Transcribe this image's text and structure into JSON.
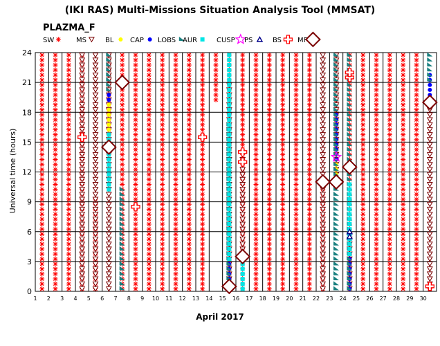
{
  "chart_data": {
    "type": "scatter",
    "title": "(IKI RAS) Multi-Missions Situation Analysis Tool (MMSAT)",
    "subtitle": "PLAZMA_F",
    "xlabel": "April 2017",
    "ylabel": "Universal time (hours)",
    "xlim": [
      1,
      31
    ],
    "ylim": [
      0,
      24
    ],
    "x_ticks": [
      1,
      2,
      3,
      4,
      5,
      6,
      7,
      8,
      9,
      10,
      11,
      12,
      13,
      14,
      15,
      16,
      17,
      18,
      19,
      20,
      21,
      22,
      23,
      24,
      25,
      26,
      27,
      28,
      29,
      30
    ],
    "y_ticks": [
      0,
      3,
      6,
      9,
      12,
      15,
      18,
      21,
      24
    ],
    "grid": true,
    "legend_placement": "top",
    "legend": [
      {
        "label": "SW",
        "marker": "asterisk",
        "color": "#ff0000"
      },
      {
        "label": "MS",
        "marker": "triangle-down",
        "color": "#7a0000"
      },
      {
        "label": "BL",
        "marker": "circle",
        "color": "#ffff00"
      },
      {
        "label": "CAP",
        "marker": "circle",
        "color": "#0000ff"
      },
      {
        "label": "LOBS",
        "marker": "flag",
        "color": "#1a8080"
      },
      {
        "label": "AUR",
        "marker": "square",
        "color": "#00e5e5"
      },
      {
        "label": "CUSP",
        "marker": "star",
        "color": "#ff00ff"
      },
      {
        "label": "PS",
        "marker": "triangle-up",
        "color": "#00008b"
      },
      {
        "label": "BS",
        "marker": "cross",
        "color": "#ff0000"
      },
      {
        "label": "MP",
        "marker": "diamond",
        "color": "#7a0000"
      }
    ],
    "series": [
      {
        "name": "SW",
        "columns": [
          {
            "x": 1.5,
            "ranges": [
              [
                0,
                24
              ]
            ]
          },
          {
            "x": 2.5,
            "ranges": [
              [
                0,
                24
              ]
            ]
          },
          {
            "x": 3.5,
            "ranges": [
              [
                0,
                24
              ]
            ]
          },
          {
            "x": 4.5,
            "ranges": [
              [
                0,
                24
              ]
            ]
          },
          {
            "x": 5.5,
            "ranges": [
              [
                0,
                9.5
              ]
            ]
          },
          {
            "x": 6.5,
            "ranges": [
              [
                13,
                24
              ]
            ]
          },
          {
            "x": 7.5,
            "ranges": [
              [
                0,
                24
              ]
            ]
          },
          {
            "x": 8.5,
            "ranges": [
              [
                0,
                24
              ]
            ]
          },
          {
            "x": 9.5,
            "ranges": [
              [
                0,
                24
              ]
            ]
          },
          {
            "x": 10.5,
            "ranges": [
              [
                0,
                24
              ]
            ]
          },
          {
            "x": 11.5,
            "ranges": [
              [
                0,
                24
              ]
            ]
          },
          {
            "x": 12.5,
            "ranges": [
              [
                0,
                24
              ]
            ]
          },
          {
            "x": 13.5,
            "ranges": [
              [
                0,
                24
              ]
            ]
          },
          {
            "x": 14.5,
            "ranges": [
              [
                19,
                24
              ]
            ]
          },
          {
            "x": 15.5,
            "ranges": [
              [
                0,
                3
              ],
              [
                14,
                24
              ]
            ]
          },
          {
            "x": 16.5,
            "ranges": [
              [
                0,
                24
              ]
            ]
          },
          {
            "x": 17.5,
            "ranges": [
              [
                0,
                24
              ]
            ]
          },
          {
            "x": 18.5,
            "ranges": [
              [
                0,
                24
              ]
            ]
          },
          {
            "x": 19.5,
            "ranges": [
              [
                0,
                24
              ]
            ]
          },
          {
            "x": 20.5,
            "ranges": [
              [
                0,
                24
              ]
            ]
          },
          {
            "x": 21.5,
            "ranges": [
              [
                0,
                24
              ]
            ]
          },
          {
            "x": 22.5,
            "ranges": [
              [
                0,
                10.5
              ]
            ]
          },
          {
            "x": 23.5,
            "ranges": [
              [
                13,
                24
              ]
            ]
          },
          {
            "x": 24.5,
            "ranges": [
              [
                0,
                24
              ]
            ]
          },
          {
            "x": 25.5,
            "ranges": [
              [
                0,
                24
              ]
            ]
          },
          {
            "x": 26.5,
            "ranges": [
              [
                0,
                24
              ]
            ]
          },
          {
            "x": 27.5,
            "ranges": [
              [
                0,
                24
              ]
            ]
          },
          {
            "x": 28.5,
            "ranges": [
              [
                0,
                24
              ]
            ]
          },
          {
            "x": 29.5,
            "ranges": [
              [
                0,
                24
              ]
            ]
          },
          {
            "x": 30.5,
            "ranges": [
              [
                0,
                0.5
              ]
            ]
          }
        ]
      },
      {
        "name": "MS",
        "columns": [
          {
            "x": 4.5,
            "ranges": [
              [
                0,
                24
              ]
            ]
          },
          {
            "x": 5.5,
            "ranges": [
              [
                0,
                24
              ]
            ]
          },
          {
            "x": 6.5,
            "ranges": [
              [
                0,
                24
              ]
            ]
          },
          {
            "x": 15.5,
            "ranges": [
              [
                0,
                21
              ]
            ]
          },
          {
            "x": 16.5,
            "ranges": [
              [
                3,
                14
              ]
            ]
          },
          {
            "x": 22.5,
            "ranges": [
              [
                0,
                24
              ]
            ]
          },
          {
            "x": 23.5,
            "ranges": [
              [
                11,
                24
              ]
            ]
          },
          {
            "x": 24.5,
            "ranges": [
              [
                0,
                6
              ]
            ]
          },
          {
            "x": 30.5,
            "ranges": [
              [
                0,
                19
              ]
            ]
          }
        ]
      },
      {
        "name": "BL",
        "columns": [
          {
            "x": 6.5,
            "ranges": [
              [
                14.5,
                19
              ]
            ]
          },
          {
            "x": 23.5,
            "ranges": [
              [
                11.5,
                14
              ]
            ]
          }
        ]
      },
      {
        "name": "CAP",
        "columns": [
          {
            "x": 6.5,
            "ranges": [
              [
                19,
                20
              ]
            ]
          },
          {
            "x": 15.5,
            "ranges": [
              [
                15,
                18.5
              ],
              [
                0,
                3.5
              ]
            ]
          },
          {
            "x": 23.5,
            "ranges": [
              [
                13,
                18
              ]
            ]
          },
          {
            "x": 24.5,
            "ranges": [
              [
                0,
                4
              ],
              [
                10,
                11
              ]
            ]
          },
          {
            "x": 30.5,
            "ranges": [
              [
                19.5,
                22
              ]
            ]
          }
        ]
      },
      {
        "name": "LOBS",
        "columns": [
          {
            "x": 6.5,
            "ranges": [
              [
                20,
                24
              ]
            ]
          },
          {
            "x": 7.5,
            "ranges": [
              [
                0,
                10.5
              ]
            ]
          },
          {
            "x": 15.5,
            "ranges": [
              [
                0,
                17
              ]
            ]
          },
          {
            "x": 23.5,
            "ranges": [
              [
                0,
                24
              ]
            ]
          },
          {
            "x": 24.5,
            "ranges": [
              [
                0,
                24
              ]
            ]
          },
          {
            "x": 30.5,
            "ranges": [
              [
                21,
                24
              ]
            ]
          }
        ]
      },
      {
        "name": "AUR",
        "columns": [
          {
            "x": 6.5,
            "ranges": [
              [
                10,
                16
              ]
            ]
          },
          {
            "x": 15.5,
            "ranges": [
              [
                3,
                24
              ]
            ]
          },
          {
            "x": 16.5,
            "ranges": [
              [
                0,
                3.5
              ]
            ]
          },
          {
            "x": 24.5,
            "ranges": [
              [
                3.5,
                11
              ]
            ]
          }
        ]
      },
      {
        "name": "CUSP",
        "points": [
          {
            "x": 23.5,
            "y": 13.5
          }
        ]
      },
      {
        "name": "PS",
        "points": [
          {
            "x": 24.5,
            "y": 5.5
          },
          {
            "x": 24.5,
            "y": 6
          }
        ]
      },
      {
        "name": "BS",
        "points": [
          {
            "x": 4.5,
            "y": 15.5
          },
          {
            "x": 8.5,
            "y": 8.5
          },
          {
            "x": 13.5,
            "y": 15.5
          },
          {
            "x": 16.5,
            "y": 13
          },
          {
            "x": 16.5,
            "y": 14
          },
          {
            "x": 22.5,
            "y": 11
          },
          {
            "x": 24.5,
            "y": 21.5
          },
          {
            "x": 24.5,
            "y": 22
          },
          {
            "x": 30.5,
            "y": 0.5
          }
        ]
      },
      {
        "name": "MP",
        "points": [
          {
            "x": 6.5,
            "y": 14.5
          },
          {
            "x": 7.5,
            "y": 21
          },
          {
            "x": 15.5,
            "y": 0.5
          },
          {
            "x": 16.5,
            "y": 3.5
          },
          {
            "x": 22.5,
            "y": 11
          },
          {
            "x": 23.5,
            "y": 11
          },
          {
            "x": 24.5,
            "y": 12.5
          },
          {
            "x": 30.5,
            "y": 19
          }
        ]
      }
    ]
  }
}
